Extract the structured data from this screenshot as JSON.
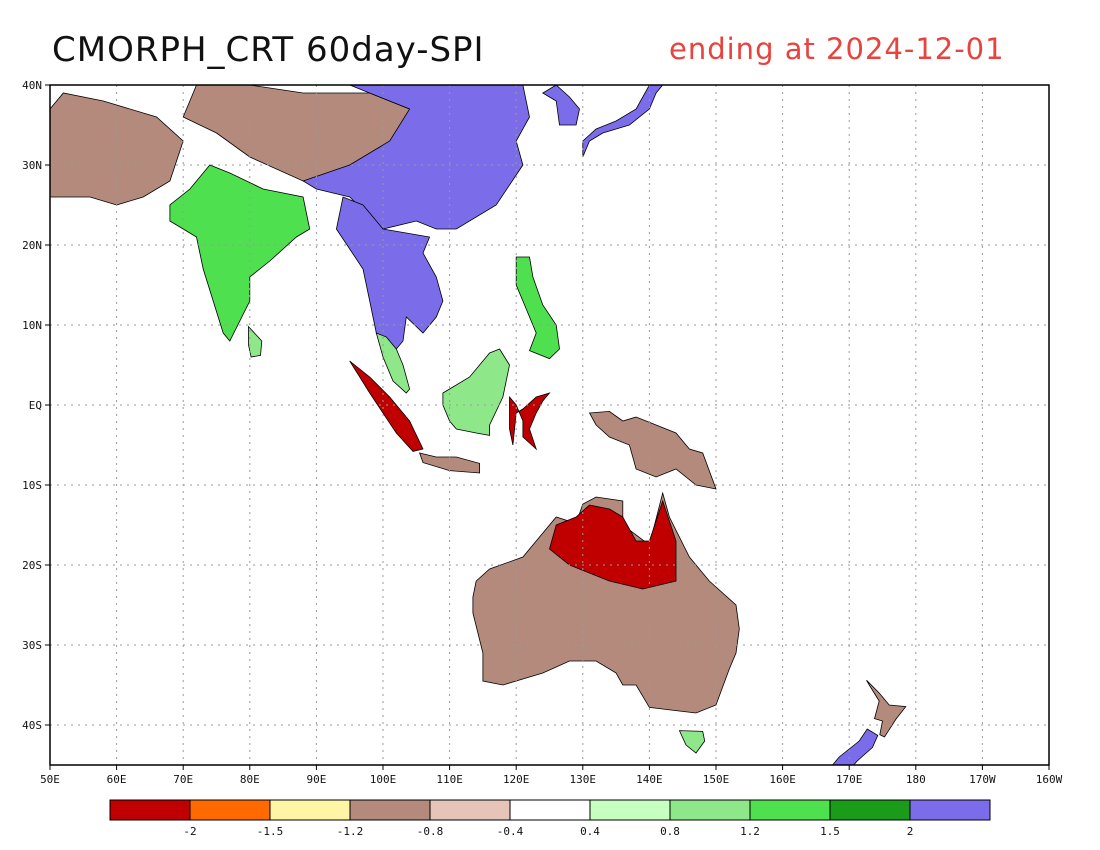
{
  "title": {
    "left": "CMORPH_CRT 60day-SPI",
    "right": "ending at 2024-12-01"
  },
  "colors": {
    "title_right": "#e8433f",
    "land_neutral": "#ffffff",
    "coastline": "#000000",
    "gridline": "#999999"
  },
  "axes": {
    "lat_labels": [
      "40N",
      "30N",
      "20N",
      "10N",
      "EQ",
      "10S",
      "20S",
      "30S",
      "40S"
    ],
    "lon_labels": [
      "50E",
      "60E",
      "70E",
      "80E",
      "90E",
      "100E",
      "110E",
      "120E",
      "130E",
      "140E",
      "150E",
      "160E",
      "170E",
      "180",
      "170W",
      "160W"
    ],
    "lat_range": [
      -45,
      40
    ],
    "lon_range": [
      50,
      200
    ],
    "grid": "dotted"
  },
  "legend": {
    "colors": [
      "#c00000",
      "#ff6a00",
      "#fff5a5",
      "#b38a7c",
      "#e6c5b8",
      "#ffffff",
      "#c6ffc0",
      "#8ee88a",
      "#4fe04f",
      "#1a9c1a",
      "#7b6cea"
    ],
    "labels": [
      "-2",
      "-1.5",
      "-1.2",
      "-0.8",
      "-0.4",
      "0.4",
      "0.8",
      "1.2",
      "1.5",
      "2"
    ]
  },
  "regions": [
    {
      "name": "india",
      "category": "wet",
      "pts": [
        [
          68,
          23
        ],
        [
          72,
          21
        ],
        [
          73,
          17
        ],
        [
          76,
          9
        ],
        [
          77,
          8
        ],
        [
          80,
          13
        ],
        [
          80,
          16
        ],
        [
          83,
          18
        ],
        [
          87,
          21
        ],
        [
          89,
          22
        ],
        [
          88,
          26
        ],
        [
          82,
          27
        ],
        [
          77,
          29
        ],
        [
          74,
          30
        ],
        [
          71,
          27
        ],
        [
          68,
          25
        ]
      ]
    },
    {
      "name": "sri-lanka",
      "category": "moderately-wet",
      "pts": [
        [
          79.8,
          9.8
        ],
        [
          81.8,
          8
        ],
        [
          81.6,
          6.2
        ],
        [
          80.2,
          6
        ],
        [
          79.8,
          7.5
        ]
      ]
    },
    {
      "name": "himalaya-tibet",
      "category": "dry",
      "pts": [
        [
          70,
          36
        ],
        [
          75,
          34
        ],
        [
          80,
          31
        ],
        [
          88,
          28
        ],
        [
          95,
          29
        ],
        [
          100,
          31
        ],
        [
          104,
          33
        ],
        [
          104,
          37
        ],
        [
          98,
          39
        ],
        [
          88,
          39
        ],
        [
          80,
          40
        ],
        [
          72,
          40
        ]
      ]
    },
    {
      "name": "arabia",
      "category": "dry",
      "pts": [
        [
          50,
          26
        ],
        [
          56,
          26
        ],
        [
          60,
          25
        ],
        [
          64,
          26
        ],
        [
          68,
          28
        ],
        [
          70,
          33
        ],
        [
          66,
          36
        ],
        [
          58,
          38
        ],
        [
          52,
          39
        ],
        [
          50,
          37
        ]
      ]
    },
    {
      "name": "east-china",
      "category": "very-wet",
      "pts": [
        [
          95,
          40
        ],
        [
          104,
          40
        ],
        [
          112,
          40
        ],
        [
          121,
          40
        ],
        [
          122,
          36
        ],
        [
          120,
          33
        ],
        [
          121,
          30
        ],
        [
          117,
          25
        ],
        [
          111,
          22
        ],
        [
          108,
          22
        ],
        [
          105,
          23
        ],
        [
          100,
          22
        ],
        [
          95,
          26
        ],
        [
          90,
          27
        ],
        [
          88,
          28
        ],
        [
          95,
          30
        ],
        [
          101,
          33
        ],
        [
          104,
          37
        ]
      ]
    },
    {
      "name": "korea",
      "category": "very-wet",
      "pts": [
        [
          124,
          39
        ],
        [
          126,
          38
        ],
        [
          126.5,
          35
        ],
        [
          129,
          35
        ],
        [
          129.5,
          37
        ],
        [
          128,
          38.5
        ],
        [
          126,
          40
        ]
      ]
    },
    {
      "name": "japan",
      "category": "very-wet",
      "pts": [
        [
          130,
          31
        ],
        [
          131,
          33
        ],
        [
          133,
          34
        ],
        [
          135,
          34.5
        ],
        [
          137,
          35
        ],
        [
          140,
          37
        ],
        [
          141,
          39
        ],
        [
          142,
          40
        ],
        [
          140,
          40
        ],
        [
          138,
          37
        ],
        [
          135,
          35.5
        ],
        [
          132,
          34.5
        ],
        [
          130,
          33
        ]
      ]
    },
    {
      "name": "indochina",
      "category": "very-wet",
      "pts": [
        [
          93,
          22
        ],
        [
          97,
          17
        ],
        [
          98,
          13
        ],
        [
          99,
          9
        ],
        [
          100,
          7
        ],
        [
          101,
          6
        ],
        [
          103,
          8
        ],
        [
          103.5,
          11
        ],
        [
          106,
          9
        ],
        [
          108,
          11
        ],
        [
          109,
          13
        ],
        [
          108,
          16
        ],
        [
          106,
          19
        ],
        [
          107,
          21
        ],
        [
          100,
          22
        ],
        [
          97,
          25
        ],
        [
          94,
          26
        ]
      ]
    },
    {
      "name": "malay-peninsula",
      "category": "moderately-wet",
      "pts": [
        [
          99,
          9
        ],
        [
          100,
          6
        ],
        [
          101.5,
          3
        ],
        [
          103.5,
          1.5
        ],
        [
          104,
          2
        ],
        [
          103,
          5
        ],
        [
          102,
          7
        ],
        [
          100.5,
          8.5
        ]
      ]
    },
    {
      "name": "sumatra",
      "category": "very-dry",
      "pts": [
        [
          95,
          5.5
        ],
        [
          98,
          3.5
        ],
        [
          101,
          1
        ],
        [
          104,
          -2
        ],
        [
          106,
          -5.5
        ],
        [
          104.5,
          -5.8
        ],
        [
          102,
          -3.5
        ],
        [
          100,
          -1
        ],
        [
          98,
          1.5
        ]
      ]
    },
    {
      "name": "java",
      "category": "dry",
      "pts": [
        [
          105.5,
          -6
        ],
        [
          108,
          -6.5
        ],
        [
          111,
          -6.5
        ],
        [
          114.5,
          -7.3
        ],
        [
          114.5,
          -8.5
        ],
        [
          110,
          -8.2
        ],
        [
          106,
          -7.2
        ]
      ]
    },
    {
      "name": "borneo",
      "category": "moderately-wet",
      "pts": [
        [
          109,
          1.5
        ],
        [
          110,
          2
        ],
        [
          113,
          3.5
        ],
        [
          116,
          6.5
        ],
        [
          117.5,
          7
        ],
        [
          119,
          5
        ],
        [
          118,
          1
        ],
        [
          116,
          -2.5
        ],
        [
          116,
          -3.8
        ],
        [
          114,
          -3.5
        ],
        [
          111,
          -3
        ],
        [
          110,
          -2
        ],
        [
          109,
          0
        ]
      ]
    },
    {
      "name": "sulawesi",
      "category": "very-dry",
      "pts": [
        [
          119,
          1
        ],
        [
          120,
          0
        ],
        [
          121,
          -2
        ],
        [
          121,
          -4
        ],
        [
          123,
          -5.5
        ],
        [
          122,
          -3
        ],
        [
          123,
          -1
        ],
        [
          124,
          0.5
        ],
        [
          125,
          1.5
        ],
        [
          123,
          1
        ],
        [
          121,
          -0.5
        ],
        [
          120,
          -1
        ],
        [
          119.5,
          -5
        ],
        [
          119,
          -3
        ]
      ]
    },
    {
      "name": "philippines",
      "category": "wet",
      "pts": [
        [
          120,
          18.5
        ],
        [
          122,
          18.5
        ],
        [
          122.5,
          16
        ],
        [
          124,
          12.5
        ],
        [
          126,
          10
        ],
        [
          126.5,
          7
        ],
        [
          125,
          5.8
        ],
        [
          122,
          6.8
        ],
        [
          123,
          9
        ],
        [
          121,
          13
        ],
        [
          120,
          15
        ]
      ]
    },
    {
      "name": "new-guinea",
      "category": "dry",
      "pts": [
        [
          131,
          -1
        ],
        [
          134,
          -0.8
        ],
        [
          136,
          -2
        ],
        [
          138,
          -1.5
        ],
        [
          141,
          -2.5
        ],
        [
          144,
          -3.5
        ],
        [
          146,
          -5.5
        ],
        [
          148,
          -6
        ],
        [
          150,
          -10.5
        ],
        [
          147,
          -10
        ],
        [
          144,
          -8
        ],
        [
          141,
          -9
        ],
        [
          138,
          -8
        ],
        [
          137,
          -5
        ],
        [
          134,
          -4
        ],
        [
          132,
          -2.5
        ]
      ]
    },
    {
      "name": "australia",
      "category": "dry",
      "pts": [
        [
          114,
          -22
        ],
        [
          116,
          -20.5
        ],
        [
          121,
          -19
        ],
        [
          123,
          -17
        ],
        [
          126,
          -14
        ],
        [
          129,
          -14.8
        ],
        [
          130,
          -12.4
        ],
        [
          132,
          -11.5
        ],
        [
          136,
          -12
        ],
        [
          136,
          -15
        ],
        [
          140,
          -17.5
        ],
        [
          142,
          -11
        ],
        [
          143,
          -14
        ],
        [
          146,
          -19
        ],
        [
          149,
          -22
        ],
        [
          153,
          -25
        ],
        [
          153.5,
          -28
        ],
        [
          153,
          -31
        ],
        [
          152,
          -33
        ],
        [
          150,
          -37.5
        ],
        [
          147,
          -38.5
        ],
        [
          144,
          -38.2
        ],
        [
          140,
          -37.8
        ],
        [
          138,
          -35
        ],
        [
          136,
          -35
        ],
        [
          135,
          -33.5
        ],
        [
          132,
          -32
        ],
        [
          128,
          -32
        ],
        [
          124,
          -33.5
        ],
        [
          118,
          -35
        ],
        [
          115,
          -34.5
        ],
        [
          115,
          -31
        ],
        [
          113.5,
          -26
        ],
        [
          113.5,
          -24
        ]
      ]
    },
    {
      "name": "north-australia-drought",
      "category": "very-dry",
      "pts": [
        [
          126,
          -15
        ],
        [
          129,
          -14
        ],
        [
          131,
          -12.5
        ],
        [
          134,
          -13
        ],
        [
          136,
          -14
        ],
        [
          138,
          -17
        ],
        [
          140,
          -17
        ],
        [
          142,
          -12
        ],
        [
          144,
          -17
        ],
        [
          144,
          -22
        ],
        [
          139,
          -23
        ],
        [
          134,
          -22
        ],
        [
          128,
          -20
        ],
        [
          125,
          -18
        ]
      ]
    },
    {
      "name": "tasmania",
      "category": "moderately-wet",
      "pts": [
        [
          144.5,
          -40.7
        ],
        [
          148,
          -40.8
        ],
        [
          148.3,
          -42
        ],
        [
          147,
          -43.5
        ],
        [
          145.5,
          -42.5
        ]
      ]
    },
    {
      "name": "new-zealand-north",
      "category": "dry",
      "pts": [
        [
          172.6,
          -34.4
        ],
        [
          174.5,
          -36
        ],
        [
          176,
          -37.5
        ],
        [
          178.5,
          -37.7
        ],
        [
          177,
          -39.3
        ],
        [
          175.3,
          -41.5
        ],
        [
          174.6,
          -41.2
        ],
        [
          175,
          -39.5
        ],
        [
          173.8,
          -39.2
        ],
        [
          174.5,
          -37
        ],
        [
          173,
          -35
        ]
      ]
    },
    {
      "name": "new-zealand-south",
      "category": "very-wet",
      "pts": [
        [
          172.7,
          -40.5
        ],
        [
          174.3,
          -41.3
        ],
        [
          173.5,
          -42.8
        ],
        [
          171.2,
          -44.5
        ],
        [
          169,
          -46.6
        ],
        [
          166.5,
          -46
        ],
        [
          168.5,
          -44
        ],
        [
          171.5,
          -42
        ]
      ]
    }
  ]
}
